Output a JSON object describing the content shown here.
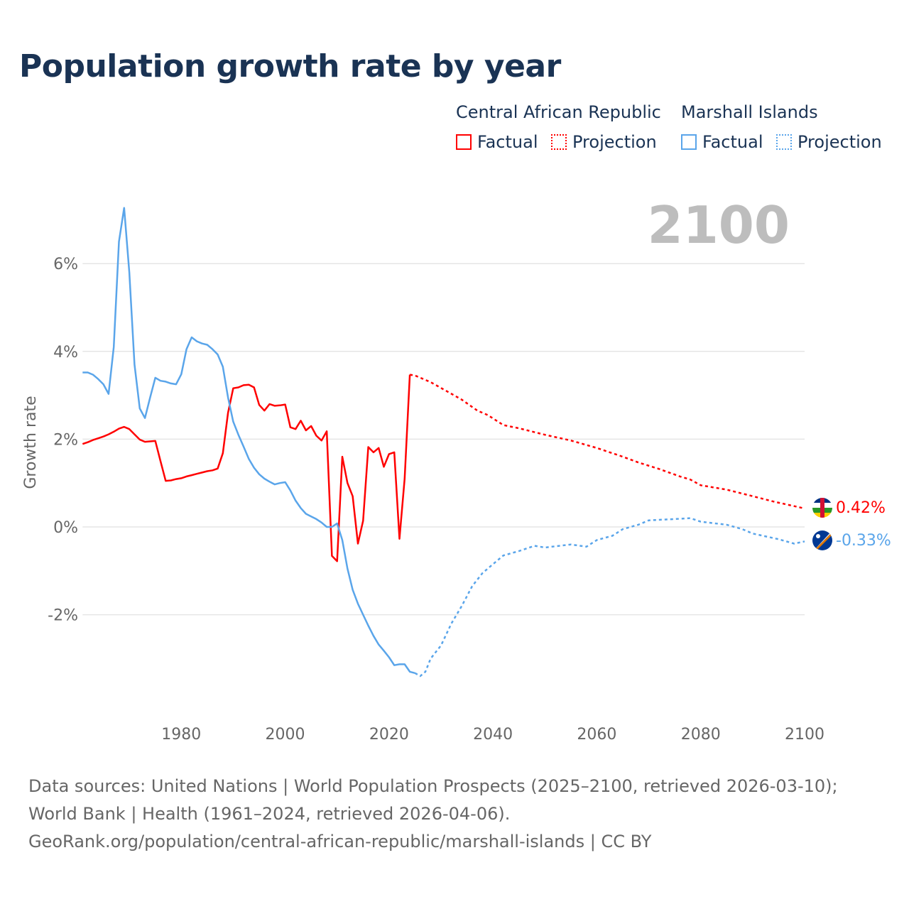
{
  "title": "Population growth rate by year",
  "legend": {
    "groups": [
      {
        "name": "Central African Republic",
        "color": "#ff0000",
        "items": [
          "Factual",
          "Projection"
        ]
      },
      {
        "name": "Marshall Islands",
        "color": "#5aa5ea",
        "items": [
          "Factual",
          "Projection"
        ]
      }
    ]
  },
  "year_label": "2100",
  "end_labels": {
    "car": "0.42%",
    "mhl": "-0.33%"
  },
  "source_lines": [
    "Data sources: United Nations | World Population Prospects (2025–2100, retrieved 2026-03-10); World Bank | Health (1961–2024, retrieved 2026-04-06).",
    "GeoRank.org/population/central-african-republic/marshall-islands | CC BY"
  ],
  "chart_data": {
    "type": "line",
    "title": "Population growth rate by year",
    "xlabel": "",
    "ylabel": "Growth rate",
    "xlim": [
      1961,
      2100
    ],
    "ylim": [
      -4.2,
      7.6
    ],
    "xticks": [
      1980,
      2000,
      2020,
      2040,
      2060,
      2080,
      2100
    ],
    "yticks": [
      {
        "v": 6,
        "label": "6%"
      },
      {
        "v": 4,
        "label": "4%"
      },
      {
        "v": 2,
        "label": "2%"
      },
      {
        "v": 0,
        "label": "0%"
      },
      {
        "v": -2,
        "label": "-2%"
      }
    ],
    "grid": true,
    "legend_position": "top-right",
    "series": [
      {
        "name": "Central African Republic — Factual",
        "color": "#ff0000",
        "dashed": false,
        "x": [
          1961,
          1962,
          1963,
          1964,
          1965,
          1966,
          1967,
          1968,
          1969,
          1970,
          1971,
          1972,
          1973,
          1974,
          1975,
          1976,
          1977,
          1978,
          1979,
          1980,
          1981,
          1982,
          1983,
          1984,
          1985,
          1986,
          1987,
          1988,
          1989,
          1990,
          1991,
          1992,
          1993,
          1994,
          1995,
          1996,
          1997,
          1998,
          1999,
          2000,
          2001,
          2002,
          2003,
          2004,
          2005,
          2006,
          2007,
          2008,
          2009,
          2010,
          2011,
          2012,
          2013,
          2014,
          2015,
          2016,
          2017,
          2018,
          2019,
          2020,
          2021,
          2022,
          2023,
          2024
        ],
        "y": [
          1.89,
          1.93,
          1.98,
          2.02,
          2.06,
          2.11,
          2.17,
          2.24,
          2.28,
          2.23,
          2.11,
          1.99,
          1.94,
          1.95,
          1.96,
          1.5,
          1.05,
          1.06,
          1.09,
          1.11,
          1.15,
          1.18,
          1.21,
          1.24,
          1.27,
          1.29,
          1.33,
          1.68,
          2.6,
          3.16,
          3.18,
          3.23,
          3.24,
          3.18,
          2.78,
          2.65,
          2.8,
          2.76,
          2.77,
          2.79,
          2.27,
          2.23,
          2.42,
          2.2,
          2.3,
          2.08,
          1.97,
          2.18,
          -0.66,
          -0.78,
          1.6,
          1.0,
          0.7,
          -0.38,
          0.14,
          1.82,
          1.7,
          1.8,
          1.37,
          1.66,
          1.7,
          -0.27,
          1.1,
          3.47
        ]
      },
      {
        "name": "Central African Republic — Projection",
        "color": "#ff0000",
        "dashed": true,
        "x": [
          2024,
          2025,
          2028,
          2031,
          2034,
          2037,
          2039,
          2042,
          2045,
          2050,
          2055,
          2060,
          2065,
          2068,
          2072,
          2076,
          2078,
          2080,
          2085,
          2090,
          2094,
          2097,
          2100
        ],
        "y": [
          3.47,
          3.45,
          3.3,
          3.1,
          2.9,
          2.65,
          2.55,
          2.32,
          2.25,
          2.1,
          1.97,
          1.8,
          1.6,
          1.47,
          1.32,
          1.15,
          1.08,
          0.95,
          0.85,
          0.7,
          0.58,
          0.5,
          0.42
        ]
      },
      {
        "name": "Marshall Islands — Factual",
        "color": "#5aa5ea",
        "dashed": false,
        "x": [
          1961,
          1962,
          1963,
          1964,
          1965,
          1966,
          1967,
          1968,
          1969,
          1970,
          1971,
          1972,
          1973,
          1974,
          1975,
          1976,
          1977,
          1978,
          1979,
          1980,
          1981,
          1982,
          1983,
          1984,
          1985,
          1986,
          1987,
          1988,
          1989,
          1990,
          1991,
          1992,
          1993,
          1994,
          1995,
          1996,
          1997,
          1998,
          1999,
          2000,
          2001,
          2002,
          2003,
          2004,
          2005,
          2006,
          2007,
          2008,
          2009,
          2010,
          2011,
          2012,
          2013,
          2014,
          2015,
          2016,
          2017,
          2018,
          2019,
          2020,
          2021,
          2022,
          2023,
          2024,
          2025
        ],
        "y": [
          3.52,
          3.52,
          3.47,
          3.37,
          3.25,
          3.03,
          4.1,
          6.5,
          7.27,
          5.8,
          3.7,
          2.7,
          2.48,
          2.95,
          3.4,
          3.33,
          3.31,
          3.27,
          3.25,
          3.48,
          4.05,
          4.32,
          4.23,
          4.18,
          4.15,
          4.05,
          3.93,
          3.65,
          2.95,
          2.4,
          2.1,
          1.83,
          1.55,
          1.35,
          1.2,
          1.1,
          1.03,
          0.97,
          1.0,
          1.02,
          0.83,
          0.6,
          0.43,
          0.3,
          0.24,
          0.18,
          0.1,
          0.0,
          0.0,
          0.08,
          -0.3,
          -0.95,
          -1.43,
          -1.75,
          -2.0,
          -2.25,
          -2.48,
          -2.68,
          -2.82,
          -2.97,
          -3.15,
          -3.13,
          -3.13,
          -3.3,
          -3.33
        ]
      },
      {
        "name": "Marshall Islands — Projection",
        "color": "#5aa5ea",
        "dashed": true,
        "x": [
          2025,
          2026,
          2027,
          2028,
          2030,
          2032,
          2034,
          2036,
          2038,
          2040,
          2042,
          2045,
          2048,
          2050,
          2055,
          2058,
          2060,
          2063,
          2065,
          2068,
          2070,
          2075,
          2078,
          2080,
          2085,
          2088,
          2090,
          2095,
          2098,
          2100
        ],
        "y": [
          -3.33,
          -3.4,
          -3.3,
          -3.0,
          -2.7,
          -2.2,
          -1.8,
          -1.35,
          -1.05,
          -0.85,
          -0.65,
          -0.55,
          -0.43,
          -0.47,
          -0.4,
          -0.45,
          -0.3,
          -0.2,
          -0.05,
          0.05,
          0.15,
          0.18,
          0.2,
          0.12,
          0.05,
          -0.05,
          -0.15,
          -0.28,
          -0.38,
          -0.33
        ]
      }
    ]
  }
}
